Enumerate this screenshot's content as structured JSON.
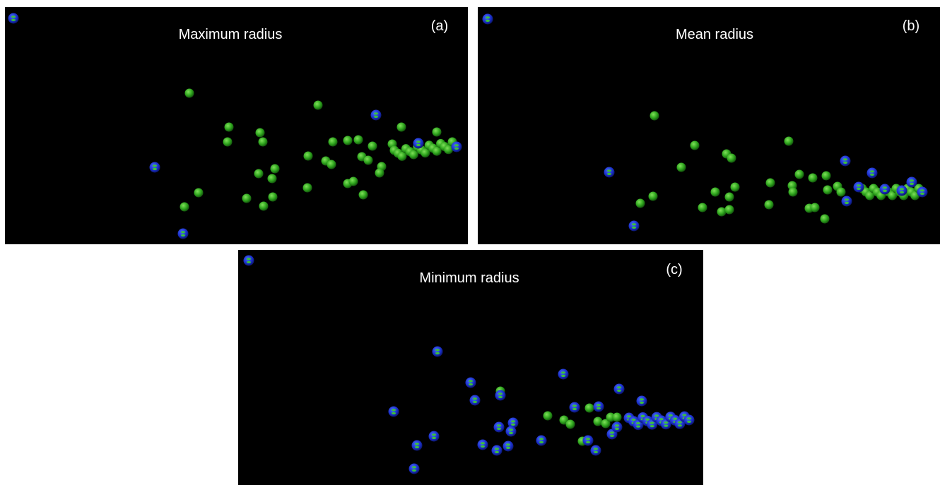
{
  "panels": [
    {
      "title": "Maximum radius",
      "label": "(a)"
    },
    {
      "title": "Mean radius",
      "label": "(b)"
    },
    {
      "title": "Minimum radius",
      "label": "(c)"
    }
  ]
}
